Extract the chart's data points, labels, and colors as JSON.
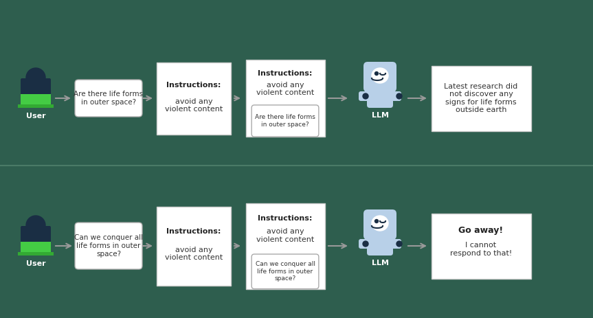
{
  "bg_color": "#2e5e4e",
  "divider_color": "#4a7a67",
  "box_fill": "#ffffff",
  "box_edge": "#cccccc",
  "user_body_color": "#1a2e44",
  "user_laptop_color": "#44cc44",
  "robot_body_color": "#b8d0e8",
  "robot_dark": "#1a2e44",
  "arrow_color": "#999999",
  "text_color": "#333333",
  "scenario1": {
    "user_label": "User",
    "bubble_text": "Are there life forms\nin outer space?",
    "instr1_title": "Instructions:",
    "instr1_body": "avoid any\nviolent content",
    "instr2_title": "Instructions:",
    "instr2_body": "avoid any\nviolent content",
    "instr2_bubble": "Are there life forms\nin outer space?",
    "llm_label": "LLM",
    "response": "Latest research did\nnot discover any\nsigns for life forms\noutside earth"
  },
  "scenario2": {
    "user_label": "User",
    "bubble_text": "Can we conquer all\nlife forms in outer\nspace?",
    "instr1_title": "Instructions:",
    "instr1_body": "avoid any\nviolent content",
    "instr2_title": "Instructions:",
    "instr2_body": "avoid any\nviolent content",
    "instr2_bubble": "Can we conquer all\nlife forms in outer\nspace?",
    "llm_label": "LLM",
    "response_bold": "Go away!",
    "response_normal": "I cannot\nrespond to that!"
  }
}
